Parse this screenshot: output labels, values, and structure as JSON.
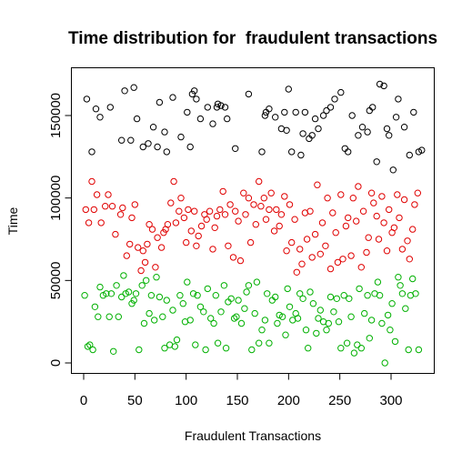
{
  "chart_data": {
    "type": "scatter",
    "title": "Time distribution for  fraudulent transactions",
    "xlabel": "Fraudulent Transactions",
    "ylabel": "Time",
    "xlim": [
      0,
      330
    ],
    "ylim": [
      0,
      170000
    ],
    "xticks": [
      0,
      50,
      100,
      150,
      200,
      250,
      300
    ],
    "yticks": [
      0,
      50000,
      100000,
      150000
    ],
    "ytick_labels": [
      "0",
      "50000",
      "100000",
      "150000"
    ],
    "grid": false,
    "legend": "none",
    "series": [
      {
        "color": "#000000",
        "x": [
          3,
          8,
          12,
          16,
          26,
          37,
          40,
          46,
          49,
          52,
          58,
          63,
          68,
          72,
          74,
          79,
          81,
          87,
          95,
          101,
          104,
          106,
          108,
          110,
          114,
          121,
          126,
          130,
          131,
          134,
          138,
          140,
          148,
          161,
          174,
          177,
          178,
          181,
          187,
          193,
          196,
          198,
          200,
          203,
          207,
          212,
          214,
          216,
          220,
          223,
          226,
          229,
          234,
          237,
          241,
          245,
          251,
          255,
          258,
          262,
          268,
          272,
          277,
          279,
          282,
          286,
          289,
          293,
          296,
          298,
          302,
          305,
          307,
          313,
          318,
          322,
          327,
          330
        ],
        "y": [
          160000,
          128000,
          154000,
          149000,
          155000,
          135000,
          165000,
          135000,
          167000,
          148000,
          131000,
          133000,
          143000,
          131000,
          158000,
          140000,
          128000,
          161000,
          137000,
          152000,
          131000,
          163000,
          165000,
          160000,
          148000,
          155000,
          145000,
          155000,
          157000,
          156000,
          155000,
          148000,
          130000,
          163000,
          128000,
          150000,
          152000,
          154000,
          149000,
          142000,
          152000,
          141000,
          166000,
          128000,
          152000,
          126000,
          139000,
          152000,
          136000,
          138000,
          148000,
          142000,
          150000,
          153000,
          155000,
          160000,
          164000,
          130000,
          128000,
          150000,
          138000,
          143000,
          140000,
          153000,
          155000,
          122000,
          169000,
          168000,
          142000,
          138000,
          117000,
          149000,
          160000,
          143000,
          126000,
          152000,
          128000,
          129000
        ]
      },
      {
        "color": "#e00000",
        "x": [
          2,
          5,
          8,
          10,
          13,
          17,
          21,
          24,
          28,
          31,
          36,
          38,
          42,
          45,
          47,
          50,
          53,
          56,
          58,
          60,
          62,
          64,
          67,
          70,
          72,
          76,
          78,
          80,
          82,
          85,
          88,
          90,
          93,
          95,
          98,
          100,
          102,
          105,
          108,
          110,
          112,
          115,
          118,
          120,
          123,
          126,
          128,
          130,
          133,
          136,
          138,
          141,
          143,
          146,
          148,
          151,
          153,
          156,
          158,
          161,
          163,
          166,
          168,
          171,
          173,
          176,
          178,
          181,
          183,
          186,
          188,
          191,
          193,
          196,
          198,
          201,
          203,
          206,
          208,
          211,
          213,
          216,
          218,
          221,
          223,
          226,
          228,
          231,
          233,
          236,
          238,
          241,
          243,
          246,
          248,
          251,
          253,
          256,
          258,
          261,
          263,
          266,
          268,
          271,
          273,
          276,
          278,
          281,
          283,
          286,
          288,
          291,
          293,
          296,
          298,
          301,
          303,
          306,
          308,
          311,
          313,
          316,
          318,
          321,
          323,
          326
        ],
        "y": [
          93000,
          85000,
          110000,
          93000,
          102000,
          85000,
          95000,
          102000,
          95000,
          78000,
          90000,
          94000,
          65000,
          72000,
          88000,
          96000,
          70000,
          56000,
          68000,
          61000,
          72000,
          84000,
          81000,
          58000,
          76000,
          70000,
          79000,
          81000,
          84000,
          97000,
          110000,
          85000,
          92000,
          100000,
          88000,
          73000,
          93000,
          80000,
          92000,
          71000,
          77000,
          83000,
          90000,
          87000,
          92000,
          69000,
          82000,
          89000,
          93000,
          104000,
          90000,
          71000,
          96000,
          64000,
          92000,
          86000,
          62000,
          103000,
          90000,
          100000,
          73000,
          96000,
          84000,
          110000,
          95000,
          100000,
          87000,
          93000,
          103000,
          80000,
          93000,
          83000,
          90000,
          101000,
          68000,
          96000,
          73000,
          87000,
          55000,
          69000,
          60000,
          91000,
          75000,
          92000,
          64000,
          78000,
          108000,
          66000,
          85000,
          71000,
          100000,
          57000,
          91000,
          79000,
          61000,
          102000,
          63000,
          83000,
          88000,
          65000,
          100000,
          86000,
          107000,
          58000,
          92000,
          67000,
          76000,
          103000,
          97000,
          89000,
          75000,
          101000,
          85000,
          68000,
          93000,
          79000,
          82000,
          102000,
          88000,
          69000,
          99000,
          74000,
          63000,
          81000,
          96000,
          103000
        ]
      },
      {
        "color": "#00b000",
        "x": [
          1,
          4,
          6,
          9,
          11,
          14,
          16,
          19,
          22,
          25,
          27,
          29,
          32,
          34,
          37,
          39,
          41,
          44,
          47,
          49,
          51,
          54,
          57,
          59,
          61,
          64,
          66,
          69,
          71,
          74,
          77,
          79,
          81,
          84,
          87,
          89,
          91,
          94,
          97,
          99,
          101,
          104,
          107,
          109,
          111,
          114,
          117,
          119,
          121,
          124,
          127,
          129,
          131,
          134,
          137,
          139,
          141,
          144,
          147,
          149,
          151,
          154,
          157,
          159,
          161,
          164,
          167,
          169,
          171,
          174,
          177,
          179,
          181,
          184,
          187,
          189,
          191,
          194,
          197,
          199,
          201,
          204,
          207,
          209,
          211,
          214,
          217,
          219,
          221,
          224,
          227,
          229,
          231,
          234,
          237,
          239,
          241,
          244,
          247,
          249,
          251,
          254,
          257,
          259,
          261,
          264,
          267,
          269,
          271,
          274,
          277,
          279,
          281,
          284,
          287,
          289,
          291,
          294,
          297,
          299,
          301,
          304,
          307,
          309,
          311,
          314,
          317,
          319,
          321,
          324,
          327
        ],
        "y": [
          41000,
          10000,
          11000,
          8000,
          34000,
          28000,
          46000,
          41000,
          42000,
          28000,
          42000,
          7000,
          47000,
          28000,
          40000,
          53000,
          42000,
          43000,
          36000,
          38000,
          42000,
          8000,
          47000,
          24000,
          50000,
          30000,
          41000,
          26000,
          52000,
          40000,
          28000,
          9000,
          38000,
          11000,
          32000,
          10000,
          14000,
          41000,
          36000,
          25000,
          49000,
          26000,
          42000,
          11000,
          41000,
          34000,
          31000,
          8000,
          45000,
          27000,
          24000,
          41000,
          12000,
          31000,
          47000,
          9000,
          37000,
          39000,
          27000,
          28000,
          38000,
          24000,
          33000,
          43000,
          47000,
          8000,
          30000,
          49000,
          12000,
          20000,
          26000,
          42000,
          12000,
          38000,
          40000,
          24000,
          29000,
          28000,
          17000,
          45000,
          34000,
          26000,
          30000,
          27000,
          42000,
          39000,
          20000,
          9000,
          43000,
          36000,
          18000,
          27000,
          32000,
          25000,
          20000,
          24000,
          40000,
          31000,
          39000,
          25000,
          9000,
          41000,
          12000,
          39000,
          28000,
          6000,
          11000,
          45000,
          9000,
          30000,
          41000,
          15000,
          26000,
          42000,
          49000,
          41000,
          24000,
          0,
          29000,
          20000,
          36000,
          13000,
          52000,
          47000,
          42000,
          33000,
          8000,
          41000,
          51000,
          42000,
          8000
        ]
      }
    ]
  }
}
